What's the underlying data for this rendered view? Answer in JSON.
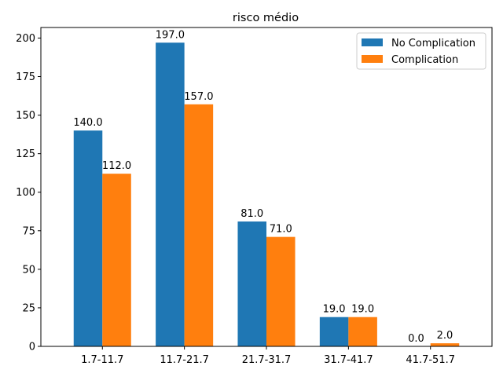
{
  "chart_data": {
    "type": "bar",
    "title": "risco médio",
    "xlabel": "",
    "ylabel": "",
    "categories": [
      "1.7-11.7",
      "11.7-21.7",
      "21.7-31.7",
      "31.7-41.7",
      "41.7-51.7"
    ],
    "series": [
      {
        "name": "No Complication",
        "values": [
          140.0,
          197.0,
          81.0,
          19.0,
          0.0
        ],
        "color": "#1f77b4"
      },
      {
        "name": "Complication",
        "values": [
          112.0,
          157.0,
          71.0,
          19.0,
          2.0
        ],
        "color": "#ff7f0e"
      }
    ],
    "data_labels": [
      [
        "140.0",
        "197.0",
        "81.0",
        "19.0",
        "0.0"
      ],
      [
        "112.0",
        "157.0",
        "71.0",
        "19.0",
        "2.0"
      ]
    ],
    "ylim": [
      0,
      206.85
    ],
    "yticks": [
      0,
      25,
      50,
      75,
      100,
      125,
      150,
      175,
      200
    ],
    "ytick_labels": [
      "0",
      "25",
      "50",
      "75",
      "100",
      "125",
      "150",
      "175",
      "200"
    ],
    "legend_position": "top-right",
    "grid": false
  }
}
